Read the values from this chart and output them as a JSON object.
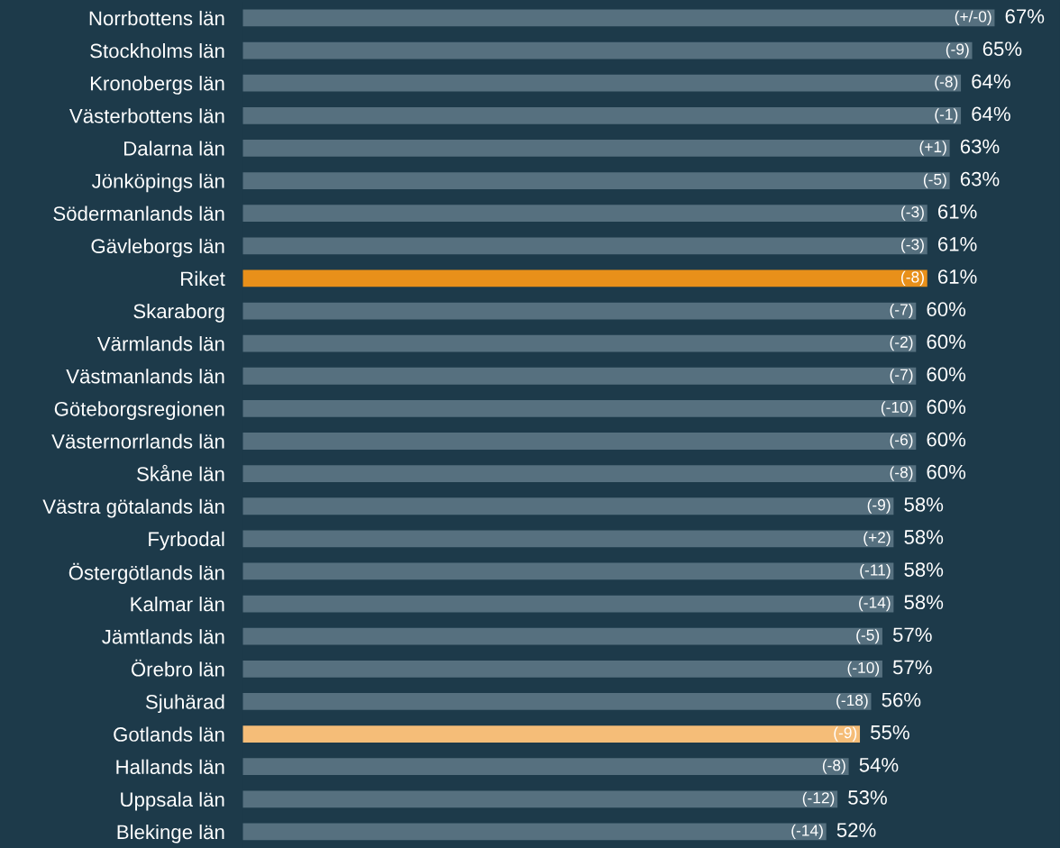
{
  "chart_data": {
    "type": "bar",
    "orientation": "horizontal",
    "tick_labels": "y",
    "grid": false,
    "legend": false,
    "categories": [
      "Norrbottens län",
      "Stockholms län",
      "Kronobergs län",
      "Västerbottens län",
      "Dalarna län",
      "Jönköpings län",
      "Södermanlands län",
      "Gävleborgs län",
      "Riket",
      "Skaraborg",
      "Värmlands län",
      "Västmanlands län",
      "Göteborgsregionen",
      "Västernorrlands län",
      "Skåne län",
      "Västra götalands län",
      "Fyrbodal",
      "Östergötlands län",
      "Kalmar län",
      "Jämtlands län",
      "Örebro län",
      "Sjuhärad",
      "Gotlands län",
      "Hallands län",
      "Uppsala län",
      "Blekinge län"
    ],
    "values": [
      67,
      65,
      64,
      64,
      63,
      63,
      61,
      61,
      61,
      60,
      60,
      60,
      60,
      60,
      60,
      58,
      58,
      58,
      58,
      57,
      57,
      56,
      55,
      54,
      53,
      52
    ],
    "value_labels": [
      "67%",
      "65%",
      "64%",
      "64%",
      "63%",
      "63%",
      "61%",
      "61%",
      "61%",
      "60%",
      "60%",
      "60%",
      "60%",
      "60%",
      "60%",
      "58%",
      "58%",
      "58%",
      "58%",
      "57%",
      "57%",
      "56%",
      "55%",
      "54%",
      "53%",
      "52%"
    ],
    "colors": [
      "#56707f",
      "#56707f",
      "#56707f",
      "#56707f",
      "#56707f",
      "#56707f",
      "#56707f",
      "#56707f",
      "#e8901a",
      "#56707f",
      "#56707f",
      "#56707f",
      "#56707f",
      "#56707f",
      "#56707f",
      "#56707f",
      "#56707f",
      "#56707f",
      "#56707f",
      "#56707f",
      "#56707f",
      "#56707f",
      "#f5bd78",
      "#56707f",
      "#56707f",
      "#56707f"
    ],
    "annotations": [
      {
        "text": "(+/-0)",
        "x": 67,
        "y": "Norrbottens län"
      },
      {
        "text": "(-9)",
        "x": 65,
        "y": "Stockholms län"
      },
      {
        "text": "(-8)",
        "x": 64,
        "y": "Kronobergs län"
      },
      {
        "text": "(-1)",
        "x": 64,
        "y": "Västerbottens län"
      },
      {
        "text": "(+1)",
        "x": 63,
        "y": "Dalarna län"
      },
      {
        "text": "(-5)",
        "x": 63,
        "y": "Jönköpings län"
      },
      {
        "text": "(-3)",
        "x": 61,
        "y": "Södermanlands län"
      },
      {
        "text": "(-3)",
        "x": 61,
        "y": "Gävleborgs län"
      },
      {
        "text": "(-8)",
        "x": 61,
        "y": "Riket"
      },
      {
        "text": "(-7)",
        "x": 60,
        "y": "Skaraborg"
      },
      {
        "text": "(-2)",
        "x": 60,
        "y": "Värmlands län"
      },
      {
        "text": "(-7)",
        "x": 60,
        "y": "Västmanlands län"
      },
      {
        "text": "(-10)",
        "x": 60,
        "y": "Göteborgsregionen"
      },
      {
        "text": "(-6)",
        "x": 60,
        "y": "Västernorrlands län"
      },
      {
        "text": "(-8)",
        "x": 60,
        "y": "Skåne län"
      },
      {
        "text": "(-9)",
        "x": 58,
        "y": "Västra götalands län"
      },
      {
        "text": "(+2)",
        "x": 58,
        "y": "Fyrbodal"
      },
      {
        "text": "(-11)",
        "x": 58,
        "y": "Östergötlands län"
      },
      {
        "text": "(-14)",
        "x": 58,
        "y": "Kalmar län"
      },
      {
        "text": "(-5)",
        "x": 57,
        "y": "Jämtlands län"
      },
      {
        "text": "(-10)",
        "x": 57,
        "y": "Örebro län"
      },
      {
        "text": "(-18)",
        "x": 56,
        "y": "Sjuhärad"
      },
      {
        "text": "(-9)",
        "x": 55,
        "y": "Gotlands län"
      },
      {
        "text": "(-8)",
        "x": 54,
        "y": "Hallands län"
      },
      {
        "text": "(-12)",
        "x": 53,
        "y": "Uppsala län"
      },
      {
        "text": "(-14)",
        "x": 52,
        "y": "Blekinge län"
      }
    ]
  }
}
